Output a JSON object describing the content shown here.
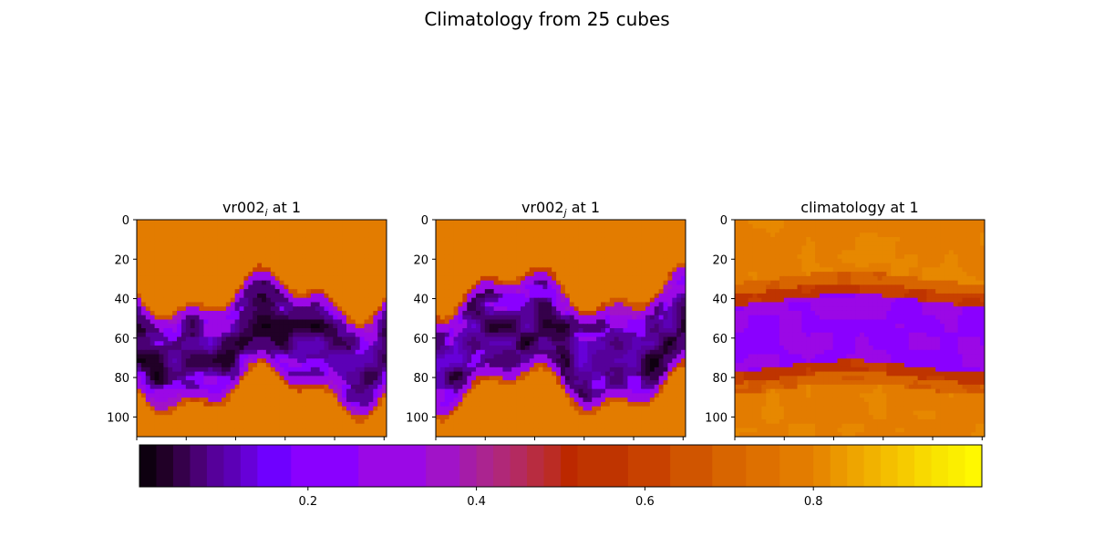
{
  "figure": {
    "title": "Climatology from 25 cubes"
  },
  "chart_data": [
    {
      "type": "heatmap",
      "title": "vr002",
      "title_subscript": "i",
      "title_suffix": " at 1",
      "y_ticks": [
        "0",
        "20",
        "40",
        "60",
        "80",
        "100"
      ],
      "y_range": [
        0,
        110
      ],
      "colormap": "gnuplot",
      "description_band": {
        "core_rows": [
          40,
          85
        ],
        "core_value": 0.05,
        "background_value": 0.78
      }
    },
    {
      "type": "heatmap",
      "title": "vr002",
      "title_subscript": "j",
      "title_suffix": " at 1",
      "y_ticks": [
        "0",
        "20",
        "40",
        "60",
        "80",
        "100"
      ],
      "y_range": [
        0,
        110
      ],
      "colormap": "gnuplot",
      "description_band": {
        "core_rows": [
          38,
          85
        ],
        "core_value": 0.05,
        "background_value": 0.78
      }
    },
    {
      "type": "heatmap",
      "title": "climatology at 1",
      "title_subscript": "",
      "title_suffix": "",
      "y_ticks": [
        "0",
        "20",
        "40",
        "60",
        "80",
        "100"
      ],
      "y_range": [
        0,
        110
      ],
      "colormap": "gnuplot",
      "description_band": {
        "core_rows": [
          35,
          80
        ],
        "core_value": 0.27,
        "background_value": 0.78
      }
    }
  ],
  "colorbar": {
    "range": [
      0.0,
      1.0
    ],
    "ticks": [
      0.2,
      0.4,
      0.6,
      0.8
    ],
    "tick_labels": [
      "0.2",
      "0.4",
      "0.6",
      "0.8"
    ],
    "levels": [
      0.0,
      0.02,
      0.04,
      0.06,
      0.08,
      0.1,
      0.12,
      0.14,
      0.18,
      0.26,
      0.34,
      0.38,
      0.4,
      0.42,
      0.44,
      0.46,
      0.48,
      0.5,
      0.52,
      0.58,
      0.63,
      0.68,
      0.72,
      0.76,
      0.8,
      0.82,
      0.84,
      0.86,
      0.88,
      0.9,
      0.92,
      0.94,
      0.96,
      0.98,
      1.0
    ],
    "colors": [
      "#0e0010",
      "#210027",
      "#35004a",
      "#4a0074",
      "#56009a",
      "#5c00b6",
      "#6700d8",
      "#6f00ff",
      "#8a00ff",
      "#9b08e6",
      "#a113c8",
      "#a51ca8",
      "#ab2490",
      "#b02878",
      "#b42a60",
      "#b82c40",
      "#bb2c24",
      "#bc2800",
      "#bf3400",
      "#c84100",
      "#d05500",
      "#d86500",
      "#de7000",
      "#e37c00",
      "#e78800",
      "#eb9800",
      "#eea500",
      "#f1b200",
      "#f4bf00",
      "#f6cb00",
      "#f8d900",
      "#f9e500",
      "#fbee00",
      "#fff800"
    ]
  }
}
